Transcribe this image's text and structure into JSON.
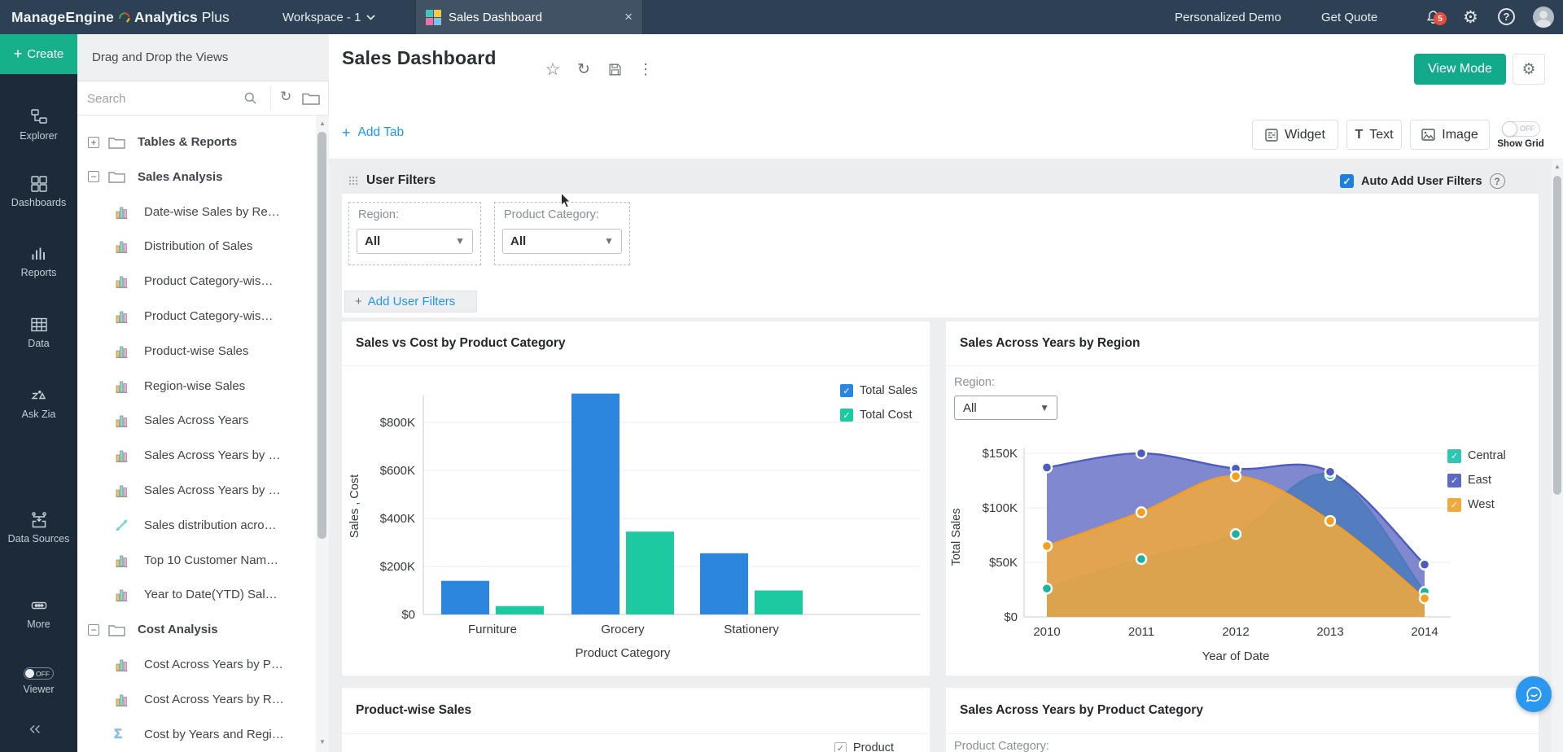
{
  "topbar": {
    "brand_primary": "ManageEngine",
    "brand_secondary": "Analytics",
    "brand_tertiary": "Plus",
    "workspace_label": "Workspace - 1",
    "tab_label": "Sales Dashboard",
    "close_glyph": "×",
    "links": [
      "Personalized Demo",
      "Get Quote"
    ],
    "notification_count": "5",
    "help_glyph": "?"
  },
  "sidebar": {
    "create_label": "Create",
    "items": [
      {
        "icon": "explorer-icon",
        "label": "Explorer"
      },
      {
        "icon": "dashboards-icon",
        "label": "Dashboards"
      },
      {
        "icon": "reports-icon",
        "label": "Reports"
      },
      {
        "icon": "data-icon",
        "label": "Data"
      },
      {
        "icon": "ask-zia-icon",
        "label": "Ask Zia"
      },
      {
        "icon": "data-sources-icon",
        "label": "Data Sources"
      },
      {
        "icon": "more-icon",
        "label": "More"
      }
    ],
    "viewer_label": "Viewer",
    "viewer_state": "OFF"
  },
  "panel": {
    "header": "Drag and Drop the Views",
    "search_placeholder": "Search",
    "tree": [
      {
        "kind": "folder",
        "state": "collapsed",
        "label": "Tables & Reports"
      },
      {
        "kind": "folder",
        "state": "expanded",
        "label": "Sales Analysis"
      },
      {
        "kind": "report",
        "icon": "bar-chart-icon",
        "label": "Date-wise Sales by Re…"
      },
      {
        "kind": "report",
        "icon": "bar-chart-icon",
        "label": "Distribution of Sales"
      },
      {
        "kind": "report",
        "icon": "bar-chart-icon",
        "label": "Product Category-wis…"
      },
      {
        "kind": "report",
        "icon": "bar-chart-icon",
        "label": "Product Category-wis…"
      },
      {
        "kind": "report",
        "icon": "bar-chart-icon",
        "label": "Product-wise Sales"
      },
      {
        "kind": "report",
        "icon": "bar-chart-icon",
        "label": "Region-wise Sales"
      },
      {
        "kind": "report",
        "icon": "bar-chart-icon",
        "label": "Sales Across Years"
      },
      {
        "kind": "report",
        "icon": "bar-chart-icon",
        "label": "Sales Across Years by …"
      },
      {
        "kind": "report",
        "icon": "bar-chart-icon",
        "label": "Sales Across Years by …"
      },
      {
        "kind": "report",
        "icon": "scatter-icon",
        "label": "Sales distribution acro…"
      },
      {
        "kind": "report",
        "icon": "bar-chart-icon",
        "label": "Top 10 Customer Nam…"
      },
      {
        "kind": "report",
        "icon": "bar-chart-icon",
        "label": "Year to Date(YTD) Sal…"
      },
      {
        "kind": "folder",
        "state": "expanded",
        "label": "Cost Analysis"
      },
      {
        "kind": "report",
        "icon": "bar-chart-icon",
        "label": "Cost Across Years by P…"
      },
      {
        "kind": "report",
        "icon": "bar-chart-icon",
        "label": "Cost Across Years by R…"
      },
      {
        "kind": "report",
        "icon": "sigma-icon",
        "label": "Cost by Years and Regi…"
      }
    ]
  },
  "main": {
    "title": "Sales Dashboard",
    "view_mode_label": "View Mode",
    "add_tab_label": "Add Tab",
    "toolbar": {
      "widget": "Widget",
      "text": "Text",
      "image": "Image",
      "show_grid_label": "Show Grid",
      "show_grid_state": "OFF"
    },
    "user_filters": {
      "title": "User Filters",
      "auto_add_label": "Auto Add User Filters",
      "help_glyph": "?",
      "filters": [
        {
          "label": "Region:",
          "value": "All"
        },
        {
          "label": "Product Category:",
          "value": "All"
        }
      ],
      "add_label": "Add User Filters"
    }
  },
  "chart_data": [
    {
      "type": "bar",
      "title": "Sales vs Cost by Product Category",
      "categories": [
        "Furniture",
        "Grocery",
        "Stationery"
      ],
      "series": [
        {
          "name": "Total Sales",
          "color": "#2d86dd",
          "values": [
            140000,
            920000,
            255000
          ]
        },
        {
          "name": "Total Cost",
          "color": "#1dc9a0",
          "values": [
            35000,
            345000,
            100000
          ]
        }
      ],
      "xlabel": "Product Category",
      "ylabel": "Sales , Cost",
      "yticks": [
        {
          "label": "$0",
          "value": 0
        },
        {
          "label": "$200K",
          "value": 200000
        },
        {
          "label": "$400K",
          "value": 400000
        },
        {
          "label": "$600K",
          "value": 600000
        },
        {
          "label": "$800K",
          "value": 800000
        }
      ],
      "ylim": [
        0,
        950000
      ],
      "grid": true,
      "legend_position": "top-right"
    },
    {
      "type": "area",
      "title": "Sales Across Years by Region",
      "filter_label": "Region:",
      "filter_value": "All",
      "x": [
        "2010",
        "2011",
        "2012",
        "2013",
        "2014"
      ],
      "series": [
        {
          "name": "Central",
          "color": "#2fc7b2",
          "values": [
            26000,
            53000,
            76000,
            130000,
            23000
          ]
        },
        {
          "name": "East",
          "color": "#5c68c3",
          "values": [
            137000,
            150000,
            136000,
            133000,
            48000
          ]
        },
        {
          "name": "West",
          "color": "#f2a93b",
          "values": [
            65000,
            96000,
            129000,
            88000,
            17000
          ]
        }
      ],
      "xlabel": "Year of Date",
      "ylabel": "Total Sales",
      "yticks": [
        {
          "label": "$0",
          "value": 0
        },
        {
          "label": "$50K",
          "value": 50000
        },
        {
          "label": "$100K",
          "value": 100000
        },
        {
          "label": "$150K",
          "value": 150000
        }
      ],
      "ylim": [
        0,
        160000
      ],
      "grid": true,
      "legend_position": "right",
      "smooth": true
    },
    {
      "type": "bar",
      "title": "Product-wise Sales",
      "legend_fragment": "Product"
    },
    {
      "type": "area",
      "title": "Sales Across Years by Product Category",
      "filter_label": "Product Category:"
    }
  ]
}
